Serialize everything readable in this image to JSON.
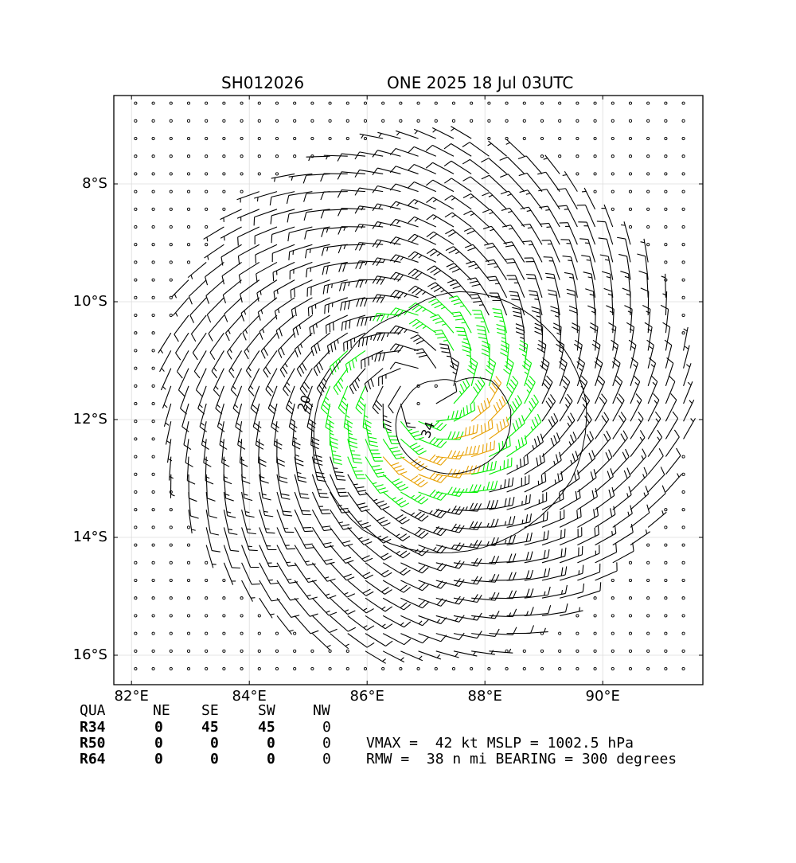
{
  "title": {
    "left": "SH012026",
    "right": "ONE 2025 18 Jul 03UTC"
  },
  "chart_data": {
    "type": "wind-barb-map",
    "xlim": [
      81.7,
      91.7
    ],
    "ylim": [
      -16.5,
      -6.5
    ],
    "x_ticks": [
      {
        "value": 82,
        "label": "82°E"
      },
      {
        "value": 84,
        "label": "84°E"
      },
      {
        "value": 86,
        "label": "86°E"
      },
      {
        "value": 88,
        "label": "88°E"
      },
      {
        "value": 90,
        "label": "90°E"
      }
    ],
    "y_ticks": [
      {
        "value": -8,
        "label": "8°S"
      },
      {
        "value": -10,
        "label": "10°S"
      },
      {
        "value": -12,
        "label": "12°S"
      },
      {
        "value": -14,
        "label": "14°S"
      },
      {
        "value": -16,
        "label": "16°S"
      }
    ],
    "grid": true,
    "center": {
      "lon": 86.9,
      "lat": -11.5
    },
    "grid_spacing_deg": 0.3,
    "rmw_nmi": 38,
    "vmax_kt": 42,
    "calm_color": "#000000",
    "barb_color_low": "#000000",
    "barb_color_34": "#00ee00",
    "barb_color_40": "#e8a000",
    "contours": [
      {
        "level": 20,
        "label": "20",
        "label_lon": 85.0,
        "label_lat": -11.75
      },
      {
        "level": 34,
        "label": "34",
        "label_lon": 87.1,
        "label_lat": -12.2
      }
    ]
  },
  "table": {
    "header": [
      "QUA",
      "NE",
      "SE",
      "SW",
      "NW"
    ],
    "rows": [
      {
        "label": "R34",
        "values": [
          "0",
          "45",
          "45",
          "0"
        ]
      },
      {
        "label": "R50",
        "values": [
          "0",
          "0",
          "0",
          "0"
        ]
      },
      {
        "label": "R64",
        "values": [
          "0",
          "0",
          "0",
          "0"
        ]
      }
    ]
  },
  "info": {
    "line1": "VMAX =  42 kt MSLP = 1002.5 hPa",
    "line2": "RMW =  38 n mi BEARING = 300 degrees"
  }
}
